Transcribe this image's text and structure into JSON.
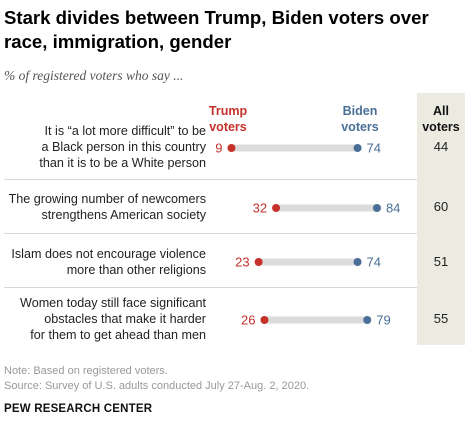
{
  "title": "Stark divides between Trump, Biden voters over race, immigration, gender",
  "subtitle": "% of registered voters who say ...",
  "headers": {
    "trump": "Trump voters",
    "biden": "Biden voters",
    "all": "All voters"
  },
  "colors": {
    "trump": "#c4322b",
    "biden": "#4a6f96",
    "bar": "#dcdcdc",
    "all_bg": "#ecebe1"
  },
  "chart_data": {
    "type": "dot",
    "series": [
      {
        "name": "Trump voters",
        "values": [
          9,
          32,
          23,
          26
        ]
      },
      {
        "name": "Biden voters",
        "values": [
          74,
          84,
          74,
          79
        ]
      }
    ],
    "all_voters": [
      44,
      60,
      51,
      55
    ],
    "categories": [
      "It is “a lot more difficult” to be a Black person in this country than it is to be a White person",
      "The growing number of newcomers strengthens American society",
      "Islam does not encourage violence more than other religions",
      "Women today still face significant obstacles that make it harder for them to get ahead than men"
    ]
  },
  "rows": [
    {
      "line1": "It is “a lot more difficult” to be",
      "line2": "a Black person in this country",
      "line3": "than it is to be a White person",
      "all": "44"
    },
    {
      "line1": "The growing number of newcomers",
      "line2": "strengthens American society",
      "line3": "",
      "all": "60"
    },
    {
      "line1": "Islam does not encourage violence",
      "line2": "more than other religions",
      "line3": "",
      "all": "51"
    },
    {
      "line1": "Women today still face significant",
      "line2": "obstacles that make it harder",
      "line3": "for them to get ahead than men",
      "all": "55"
    }
  ],
  "footer": {
    "note": "Note: Based on registered voters.",
    "source": "Source: Survey of U.S. adults conducted July 27-Aug. 2, 2020.",
    "brand": "PEW RESEARCH CENTER"
  }
}
